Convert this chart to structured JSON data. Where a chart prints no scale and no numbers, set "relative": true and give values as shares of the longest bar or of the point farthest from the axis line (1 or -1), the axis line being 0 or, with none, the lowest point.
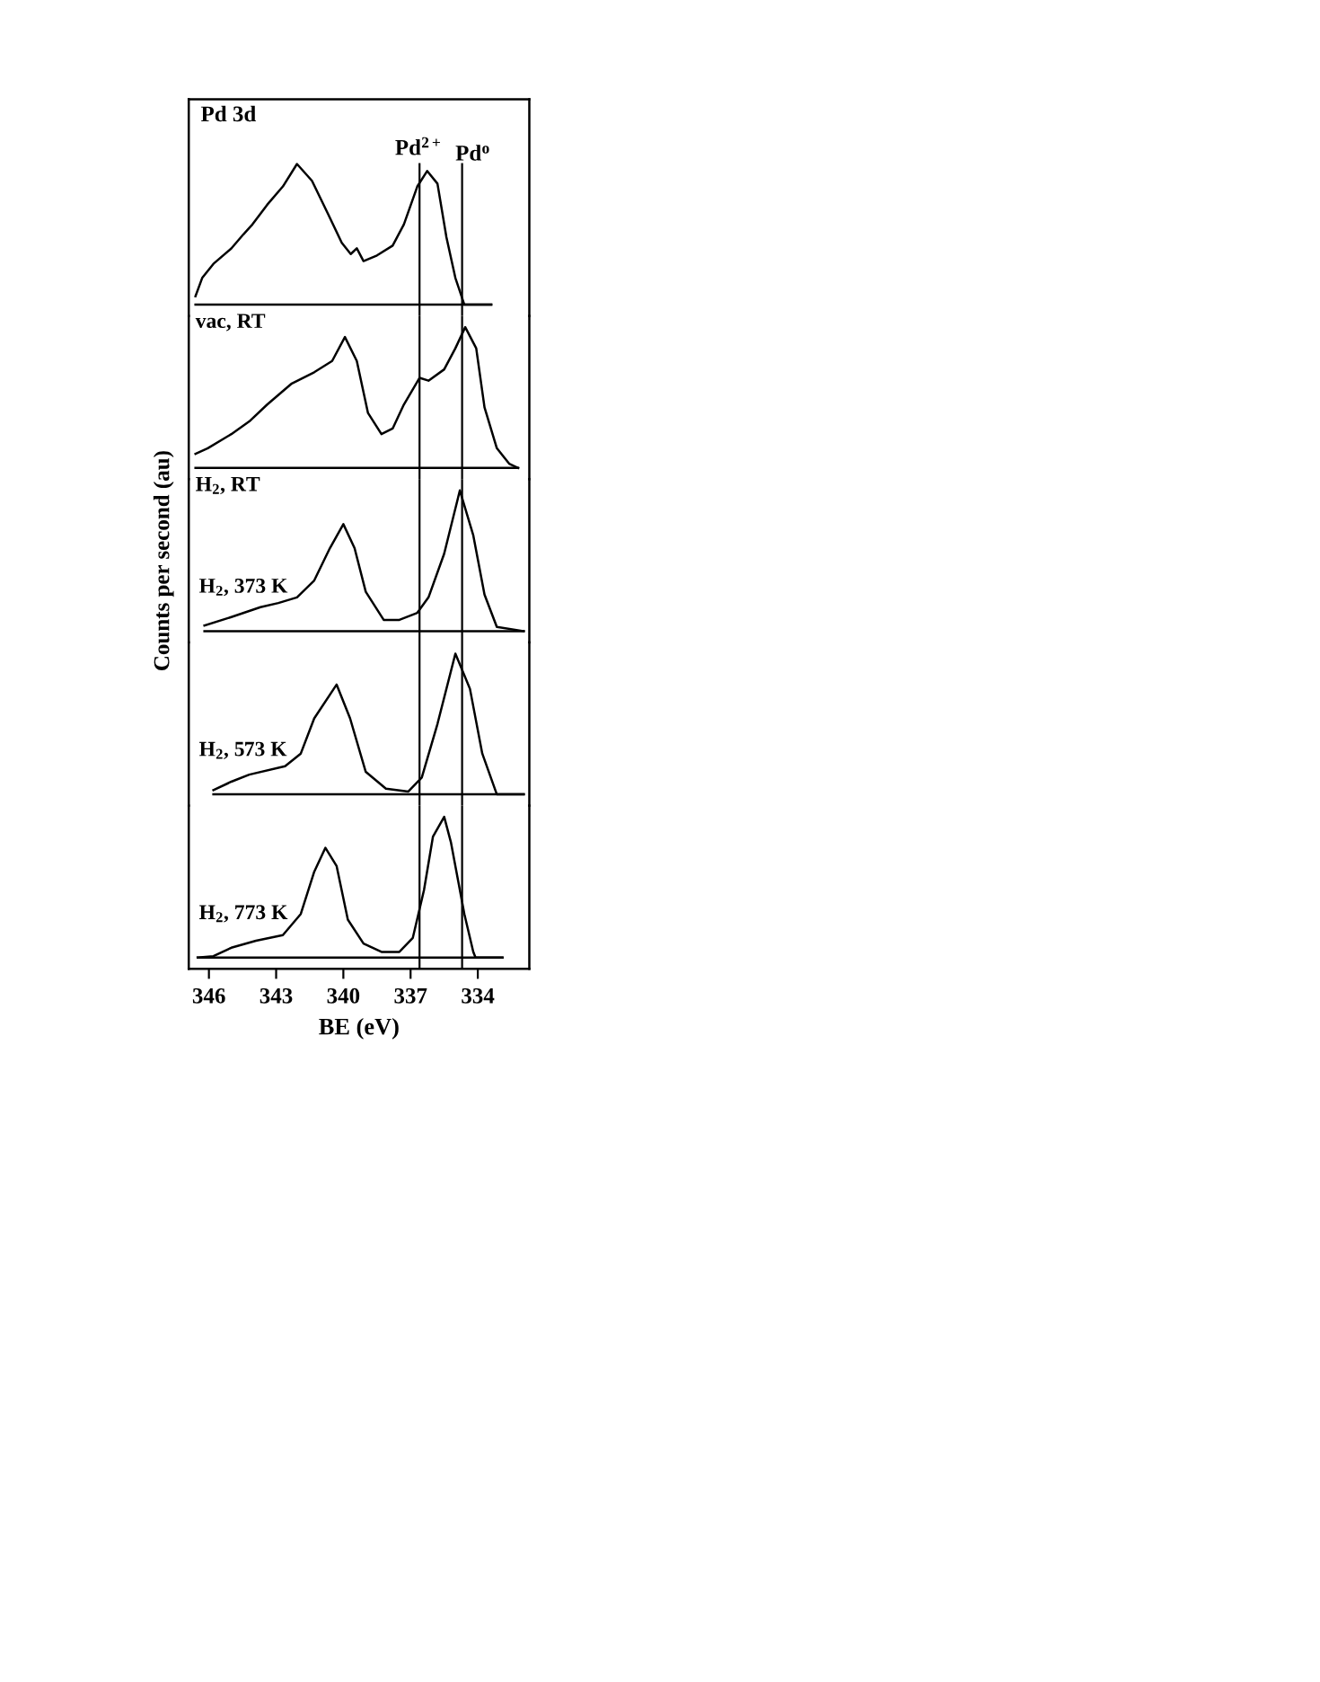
{
  "chart_data": [
    {
      "type": "line",
      "relative": true,
      "title": "Pd 3d",
      "xlim": [
        346.9,
        331.7
      ],
      "tick_labels": false,
      "legend": false,
      "grid": false,
      "x": [
        346.6,
        346.3,
        345.8,
        345.0,
        344.46,
        344.06,
        343.4,
        342.7,
        342.07,
        341.4,
        340.7,
        340.07,
        339.67,
        339.4,
        339.1,
        338.5,
        337.8,
        337.3,
        336.7,
        336.26,
        335.8,
        335.4,
        335.0,
        334.6,
        333.4
      ],
      "series": [
        {
          "name": "vac, RT",
          "color": "#000000",
          "values": [
            0.06,
            0.19,
            0.29,
            0.4,
            0.5,
            0.57,
            0.71,
            0.84,
            1.0,
            0.88,
            0.65,
            0.44,
            0.36,
            0.4,
            0.31,
            0.35,
            0.42,
            0.57,
            0.84,
            0.95,
            0.86,
            0.48,
            0.19,
            0.0,
            0.0
          ]
        }
      ],
      "ref_lines": [
        {
          "axis": "x",
          "value": 336.6,
          "label": "Pd$^{2+}$"
        },
        {
          "axis": "x",
          "value": 334.7,
          "label": "Pd$^{o}$"
        }
      ]
    },
    {
      "type": "line",
      "relative": true,
      "xlim": [
        346.9,
        331.7
      ],
      "tick_labels": false,
      "legend": false,
      "grid": false,
      "x": [
        346.6,
        346.05,
        345.0,
        344.2,
        343.4,
        342.3,
        341.3,
        340.5,
        339.93,
        339.4,
        338.9,
        338.3,
        337.8,
        337.3,
        336.6,
        336.2,
        335.5,
        335.0,
        334.56,
        334.07,
        333.7,
        333.15,
        332.6,
        332.2
      ],
      "series": [
        {
          "name": "H$_{2}$, RT",
          "color": "#000000",
          "values": [
            0.1,
            0.14,
            0.24,
            0.33,
            0.45,
            0.6,
            0.68,
            0.76,
            0.93,
            0.76,
            0.39,
            0.24,
            0.28,
            0.45,
            0.64,
            0.62,
            0.7,
            0.85,
            1.0,
            0.85,
            0.43,
            0.14,
            0.03,
            0.0
          ]
        }
      ],
      "ref_lines": [
        {
          "axis": "x",
          "value": 336.6
        },
        {
          "axis": "x",
          "value": 334.7
        }
      ]
    },
    {
      "type": "line",
      "relative": true,
      "ylabel": "Counts per second (au)",
      "xlim": [
        346.9,
        331.7
      ],
      "tick_labels": false,
      "legend": false,
      "grid": false,
      "x": [
        346.2,
        345.0,
        343.7,
        342.9,
        342.07,
        341.3,
        340.6,
        340.0,
        339.5,
        339.0,
        338.2,
        337.5,
        336.7,
        336.2,
        335.5,
        334.8,
        334.2,
        333.7,
        333.15,
        331.95
      ],
      "series": [
        {
          "name": "H$_{2}$, 373 K",
          "color": "#000000",
          "values": [
            0.04,
            0.1,
            0.17,
            0.2,
            0.24,
            0.36,
            0.59,
            0.76,
            0.59,
            0.28,
            0.08,
            0.08,
            0.13,
            0.24,
            0.55,
            1.0,
            0.68,
            0.26,
            0.03,
            0.0
          ]
        }
      ],
      "ref_lines": [
        {
          "axis": "x",
          "value": 336.6
        },
        {
          "axis": "x",
          "value": 334.7
        }
      ]
    },
    {
      "type": "line",
      "relative": true,
      "xlim": [
        346.9,
        331.7
      ],
      "tick_labels": false,
      "legend": false,
      "grid": false,
      "x": [
        345.8,
        345.0,
        344.2,
        342.6,
        341.9,
        341.3,
        340.3,
        339.7,
        339.0,
        338.1,
        337.1,
        336.5,
        335.8,
        335.0,
        334.35,
        333.8,
        333.15,
        331.95
      ],
      "series": [
        {
          "name": "H$_{2}$, 573 K",
          "color": "#000000",
          "values": [
            0.03,
            0.09,
            0.14,
            0.2,
            0.29,
            0.54,
            0.78,
            0.54,
            0.16,
            0.04,
            0.02,
            0.12,
            0.5,
            1.0,
            0.75,
            0.29,
            0.0,
            0.0
          ]
        }
      ],
      "ref_lines": [
        {
          "axis": "x",
          "value": 336.6
        },
        {
          "axis": "x",
          "value": 334.7
        }
      ]
    },
    {
      "type": "line",
      "relative": true,
      "xlabel": "BE (eV)",
      "xlim": [
        346.9,
        331.7
      ],
      "xticks": [
        346,
        343,
        340,
        337,
        334
      ],
      "tick_labels": "x",
      "legend": false,
      "grid": false,
      "x": [
        346.5,
        345.8,
        345.0,
        343.9,
        342.7,
        341.9,
        341.3,
        340.8,
        340.3,
        339.8,
        339.1,
        338.3,
        337.5,
        336.9,
        336.4,
        336.0,
        335.5,
        335.2,
        334.6,
        334.2,
        334.1,
        332.9
      ],
      "series": [
        {
          "name": "H$_{2}$, 773 K",
          "color": "#000000",
          "values": [
            0.0,
            0.01,
            0.07,
            0.12,
            0.16,
            0.31,
            0.61,
            0.78,
            0.65,
            0.27,
            0.1,
            0.04,
            0.04,
            0.14,
            0.48,
            0.86,
            1.0,
            0.82,
            0.31,
            0.04,
            0.0,
            0.0
          ]
        }
      ],
      "ref_lines": [
        {
          "axis": "x",
          "value": 336.6
        },
        {
          "axis": "x",
          "value": 334.7
        }
      ]
    }
  ]
}
